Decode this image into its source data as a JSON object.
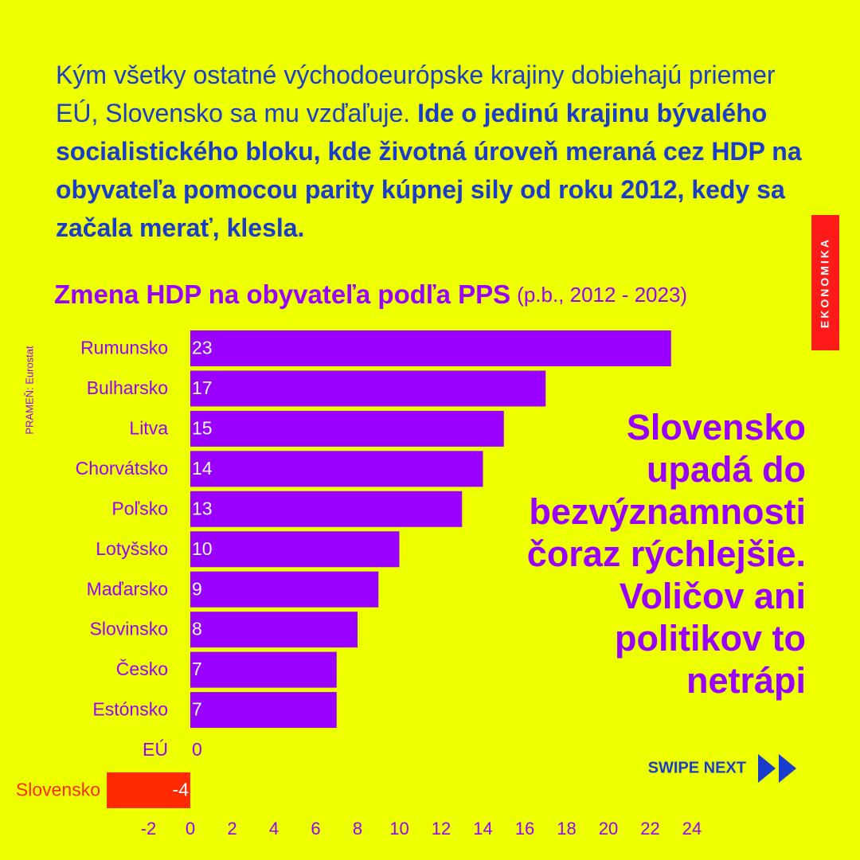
{
  "intro": {
    "regular": "Kým všetky ostatné východoeurópske krajiny dobiehajú priemer EÚ, Slovensko sa mu vzďaľuje.",
    "bold": "Ide o jedinú krajinu bývalého socialistického bloku, kde životná úroveň meraná cez HDP na obyvateľa pomocou parity kúpnej sily od roku 2012, kedy sa začala merať, klesla."
  },
  "tag": "EKONOMIKA",
  "source": "PRAMEŇ: Eurostat",
  "swipe": "SWIPE NEXT",
  "chart_data": {
    "type": "hbar",
    "title": "Zmena HDP na obyvateľa podľa PPS",
    "subtitle": "(p.b., 2012 - 2023)",
    "categories": [
      "Rumunsko",
      "Bulharsko",
      "Litva",
      "Chorvátsko",
      "Poľsko",
      "Lotyšsko",
      "Maďarsko",
      "Slovinsko",
      "Česko",
      "Estónsko",
      "EÚ",
      "Slovensko"
    ],
    "values": [
      23,
      17,
      15,
      14,
      13,
      10,
      9,
      8,
      7,
      7,
      0,
      -4
    ],
    "colors": [
      "#9900ff",
      "#9900ff",
      "#9900ff",
      "#9900ff",
      "#9900ff",
      "#9900ff",
      "#9900ff",
      "#9900ff",
      "#9900ff",
      "#9900ff",
      "#9900ff",
      "#ff2a00"
    ],
    "xlim": [
      -4,
      24
    ],
    "xticks": [
      -2,
      0,
      2,
      4,
      6,
      8,
      10,
      12,
      14,
      16,
      18,
      20,
      22,
      24
    ],
    "grid": false,
    "annotation": [
      "Slovensko",
      "upadá do",
      "bezvýznamnosti",
      "čoraz rýchlejšie.",
      "Voličov ani",
      "politikov to",
      "netrápi"
    ]
  }
}
